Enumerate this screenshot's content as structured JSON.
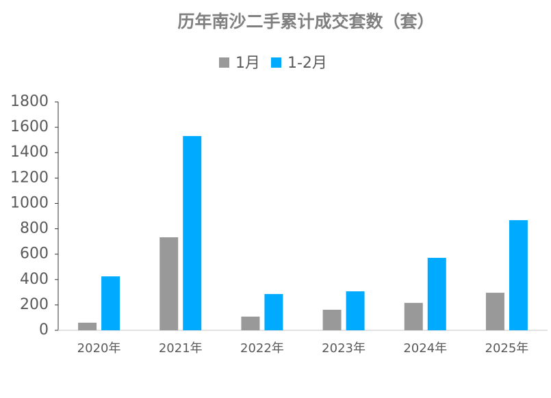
{
  "chart_data": {
    "type": "bar",
    "title": "历年南沙二手累计成交套数（套）",
    "categories": [
      "2020年",
      "2021年",
      "2022年",
      "2023年",
      "2024年",
      "2025年"
    ],
    "series": [
      {
        "name": "1月",
        "color": "#999999",
        "values": [
          60,
          733,
          108,
          162,
          216,
          296
        ]
      },
      {
        "name": "1-2月",
        "color": "#00aaff",
        "values": [
          425,
          1531,
          286,
          307,
          571,
          868
        ]
      }
    ],
    "ylim": [
      0,
      1800
    ],
    "yticks": [
      0,
      200,
      400,
      600,
      800,
      1000,
      1200,
      1400,
      1600,
      1800
    ],
    "grid": false
  }
}
